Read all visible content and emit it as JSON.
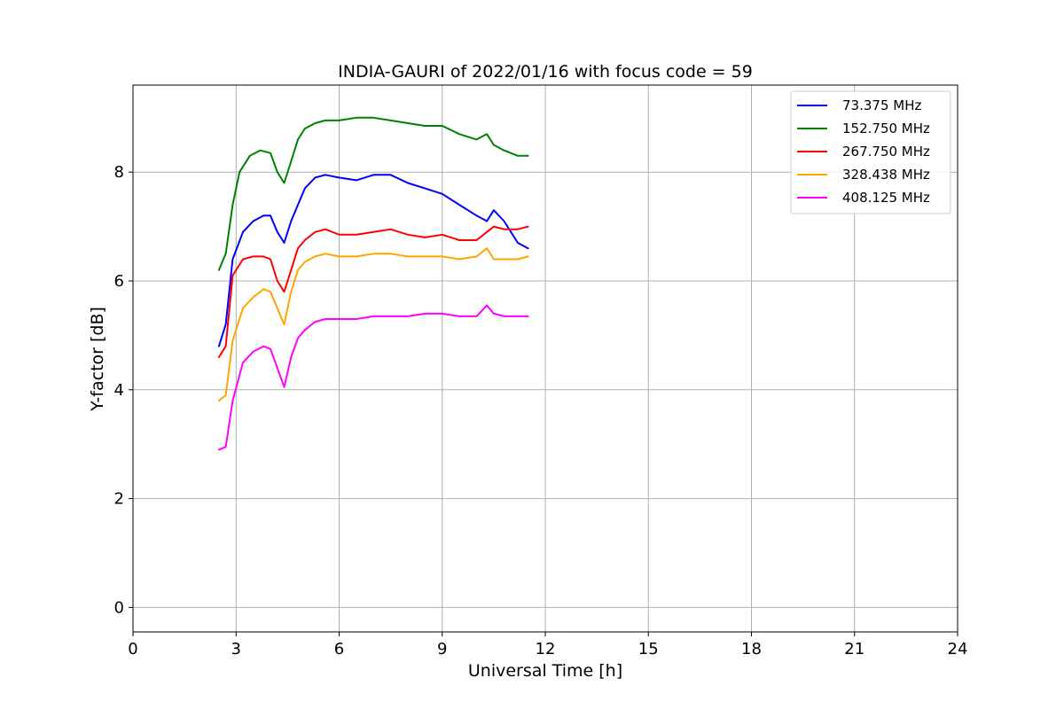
{
  "chart_data": {
    "type": "line",
    "title": "INDIA-GAURI of 2022/01/16 with focus code = 59",
    "xlabel": "Universal Time [h]",
    "ylabel": "Y-factor [dB]",
    "xlim": [
      0,
      24
    ],
    "ylim": [
      -0.45,
      9.6
    ],
    "xticks": [
      0,
      3,
      6,
      9,
      12,
      15,
      18,
      21,
      24
    ],
    "xtick_labels": [
      "0",
      "3",
      "6",
      "9",
      "12",
      "15",
      "18",
      "21",
      "24"
    ],
    "yticks": [
      0,
      2,
      4,
      6,
      8
    ],
    "ytick_labels": [
      "0",
      "2",
      "4",
      "6",
      "8"
    ],
    "grid": true,
    "legend_position": "top-right",
    "series": [
      {
        "name": "73.375 MHz",
        "color": "#0000ff",
        "x": [
          2.5,
          2.7,
          2.9,
          3.2,
          3.5,
          3.8,
          4.0,
          4.2,
          4.4,
          4.6,
          4.8,
          5.0,
          5.3,
          5.6,
          6.0,
          6.5,
          7.0,
          7.5,
          8.0,
          8.5,
          9.0,
          9.5,
          10.0,
          10.3,
          10.5,
          10.8,
          11.2,
          11.5
        ],
        "y": [
          4.8,
          5.2,
          6.4,
          6.9,
          7.1,
          7.2,
          7.2,
          6.9,
          6.7,
          7.1,
          7.4,
          7.7,
          7.9,
          7.95,
          7.9,
          7.85,
          7.95,
          7.95,
          7.8,
          7.7,
          7.6,
          7.4,
          7.2,
          7.1,
          7.3,
          7.1,
          6.7,
          6.6
        ]
      },
      {
        "name": "152.750 MHz",
        "color": "#008000",
        "x": [
          2.5,
          2.7,
          2.9,
          3.1,
          3.4,
          3.7,
          4.0,
          4.2,
          4.4,
          4.6,
          4.8,
          5.0,
          5.3,
          5.6,
          6.0,
          6.5,
          7.0,
          7.5,
          8.0,
          8.5,
          9.0,
          9.5,
          10.0,
          10.3,
          10.5,
          10.8,
          11.2,
          11.5
        ],
        "y": [
          6.2,
          6.5,
          7.4,
          8.0,
          8.3,
          8.4,
          8.35,
          8.0,
          7.8,
          8.2,
          8.6,
          8.8,
          8.9,
          8.95,
          8.95,
          9.0,
          9.0,
          8.95,
          8.9,
          8.85,
          8.85,
          8.7,
          8.6,
          8.7,
          8.5,
          8.4,
          8.3,
          8.3
        ]
      },
      {
        "name": "267.750 MHz",
        "color": "#ff0000",
        "x": [
          2.5,
          2.7,
          2.9,
          3.2,
          3.5,
          3.8,
          4.0,
          4.2,
          4.4,
          4.6,
          4.8,
          5.0,
          5.3,
          5.6,
          6.0,
          6.5,
          7.0,
          7.5,
          8.0,
          8.5,
          9.0,
          9.5,
          10.0,
          10.3,
          10.5,
          10.8,
          11.2,
          11.5
        ],
        "y": [
          4.6,
          4.8,
          6.1,
          6.4,
          6.45,
          6.45,
          6.4,
          6.0,
          5.8,
          6.2,
          6.6,
          6.75,
          6.9,
          6.95,
          6.85,
          6.85,
          6.9,
          6.95,
          6.85,
          6.8,
          6.85,
          6.75,
          6.75,
          6.9,
          7.0,
          6.95,
          6.95,
          7.0
        ]
      },
      {
        "name": "328.438 MHz",
        "color": "#ffa500",
        "x": [
          2.5,
          2.7,
          2.9,
          3.2,
          3.5,
          3.8,
          4.0,
          4.2,
          4.4,
          4.6,
          4.8,
          5.0,
          5.3,
          5.6,
          6.0,
          6.5,
          7.0,
          7.5,
          8.0,
          8.5,
          9.0,
          9.5,
          10.0,
          10.3,
          10.5,
          10.8,
          11.2,
          11.5
        ],
        "y": [
          3.8,
          3.9,
          4.9,
          5.5,
          5.7,
          5.85,
          5.8,
          5.5,
          5.2,
          5.8,
          6.2,
          6.35,
          6.45,
          6.5,
          6.45,
          6.45,
          6.5,
          6.5,
          6.45,
          6.45,
          6.45,
          6.4,
          6.45,
          6.6,
          6.4,
          6.4,
          6.4,
          6.45
        ]
      },
      {
        "name": "408.125 MHz",
        "color": "#ff00ff",
        "x": [
          2.5,
          2.7,
          2.9,
          3.2,
          3.5,
          3.8,
          4.0,
          4.2,
          4.4,
          4.6,
          4.8,
          5.0,
          5.3,
          5.6,
          6.0,
          6.5,
          7.0,
          7.5,
          8.0,
          8.5,
          9.0,
          9.5,
          10.0,
          10.3,
          10.5,
          10.8,
          11.2,
          11.5
        ],
        "y": [
          2.9,
          2.95,
          3.8,
          4.5,
          4.7,
          4.8,
          4.75,
          4.4,
          4.05,
          4.6,
          4.95,
          5.1,
          5.25,
          5.3,
          5.3,
          5.3,
          5.35,
          5.35,
          5.35,
          5.4,
          5.4,
          5.35,
          5.35,
          5.55,
          5.4,
          5.35,
          5.35,
          5.35
        ]
      }
    ]
  }
}
